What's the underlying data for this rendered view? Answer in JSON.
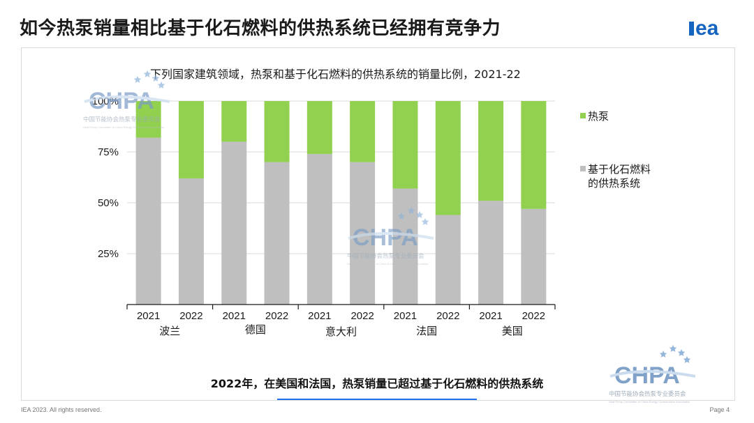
{
  "slide": {
    "title": "如今热泵销量相比基于化石燃料的供热系统已经拥有竞争力",
    "note": "2022年，在美国和法国，热泵销量已超过基于化石燃料的供热系统",
    "footer_left": "IEA 2023. All rights reserved.",
    "footer_right": "Page 4",
    "logo_text": "iea"
  },
  "watermark": {
    "brand": "CHPA",
    "line1": "中国节能协会热泵专业委员会",
    "line2": "Heat Pump Committee of China Energy Conservation Association"
  },
  "colors": {
    "heat_pump": "#92d050",
    "fossil": "#bfbfbf",
    "accent_blue": "#1f6feb",
    "iea_blue": "#1565c0"
  },
  "chart_data": {
    "type": "bar",
    "stacked": true,
    "title": "下列国家建筑领域，热泵和基于化石燃料的供热系统的销量比例，2021-22",
    "categories": [
      "2021",
      "2022",
      "2021",
      "2022",
      "2021",
      "2022",
      "2021",
      "2022",
      "2021",
      "2022"
    ],
    "groups": [
      "波兰",
      "德国",
      "意大利",
      "法国",
      "美国"
    ],
    "yticks": [
      "25%",
      "50%",
      "75%",
      "100%"
    ],
    "ylim": [
      0,
      100
    ],
    "grid": true,
    "legend_position": "right",
    "series": [
      {
        "name": "基于化石燃料的供热系统",
        "values": [
          82,
          62,
          80,
          70,
          74,
          70,
          57,
          44,
          51,
          47
        ]
      },
      {
        "name": "热泵",
        "values": [
          18,
          38,
          20,
          30,
          26,
          30,
          43,
          56,
          49,
          53
        ]
      }
    ],
    "legend": {
      "heat_pump": "热泵",
      "fossil_line1": "基于化石燃料",
      "fossil_line2": "的供热系统"
    }
  }
}
